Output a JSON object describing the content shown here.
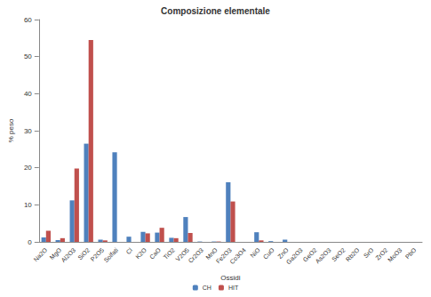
{
  "chart_data": {
    "type": "bar",
    "title": "Composizione elementale",
    "x_label": "Ossidi",
    "y_label": "% peso",
    "categories": [
      "Na2O",
      "MgO",
      "Al2O3",
      "SiO2",
      "P2O5",
      "Solfati",
      "Cl",
      "K2O",
      "CaO",
      "TiO2",
      "V2O5",
      "Cr2O3",
      "MnO",
      "Fe2O3",
      "Co3O4",
      "NiO",
      "CuO",
      "ZnO",
      "Ga2O3",
      "GeO2",
      "As2O3",
      "SeO2",
      "Rb2O",
      "SrO",
      "ZrO2",
      "MoO3",
      "PbO"
    ],
    "series": [
      {
        "name": "CH",
        "color": "#4f81bd",
        "values": [
          1.2,
          0.5,
          11.2,
          26.5,
          0.6,
          24.2,
          1.4,
          2.7,
          2.5,
          1.1,
          6.7,
          0.1,
          0.1,
          16.1,
          0,
          2.6,
          0.2,
          0.6,
          0,
          0,
          0,
          0,
          0,
          0,
          0,
          0,
          0
        ]
      },
      {
        "name": "HIT",
        "color": "#c0504d",
        "values": [
          3.0,
          1.0,
          19.8,
          54.5,
          0.4,
          0,
          0,
          2.3,
          3.8,
          1.0,
          2.4,
          0,
          0.1,
          10.9,
          0,
          0.4,
          0,
          0,
          0,
          0,
          0,
          0,
          0,
          0,
          0,
          0,
          0
        ]
      }
    ],
    "ylim": [
      0,
      60
    ],
    "yticks": [
      0,
      10,
      20,
      30,
      40,
      50,
      60
    ],
    "grid": false,
    "legend": "bottom"
  }
}
